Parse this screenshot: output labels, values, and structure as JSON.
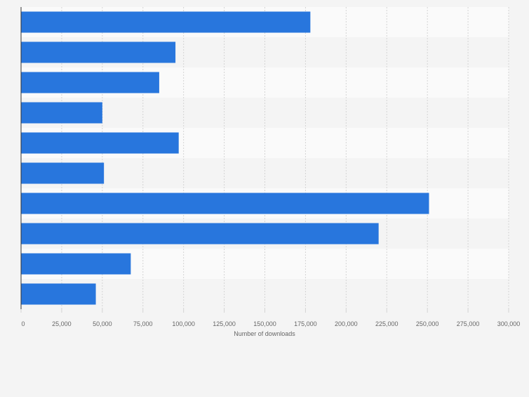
{
  "chart_data": {
    "type": "bar",
    "orientation": "horizontal",
    "xlabel": "Number of downloads",
    "xlim": [
      0,
      300000
    ],
    "ticks": [
      0,
      25000,
      50000,
      75000,
      100000,
      125000,
      150000,
      175000,
      200000,
      225000,
      250000,
      275000,
      300000
    ],
    "tick_labels": [
      "0",
      "25,000",
      "50,000",
      "75,000",
      "100,000",
      "125,000",
      "150,000",
      "175,000",
      "200,000",
      "225,000",
      "250,000",
      "275,000",
      "300,000"
    ],
    "values": [
      178000,
      95000,
      85000,
      50000,
      97000,
      51000,
      251000,
      220000,
      67500,
      46000
    ],
    "grid": true,
    "colors": {
      "bar": "#2876dd",
      "band_light": "#fafafa",
      "band_dark": "#f4f4f4",
      "grid": "#d4d4d4",
      "axis": "#333333",
      "text": "#666666"
    }
  }
}
